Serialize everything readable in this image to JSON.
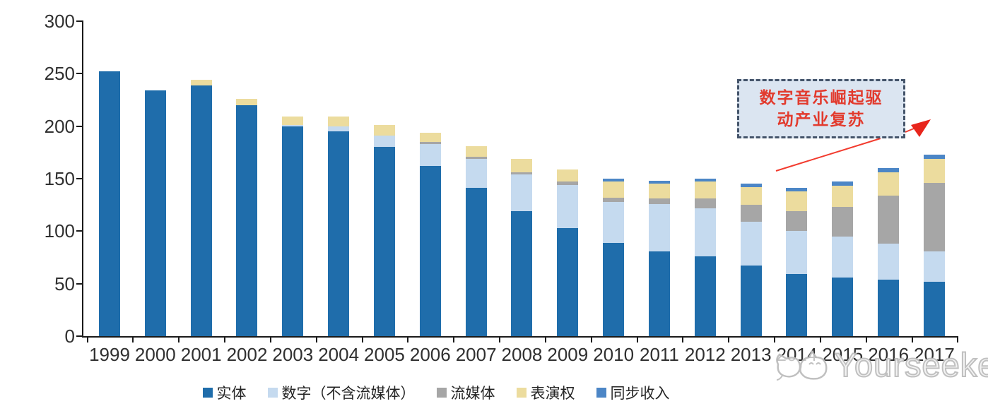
{
  "chart_data": {
    "type": "bar",
    "stacked": true,
    "title": "",
    "xlabel": "",
    "ylabel": "",
    "categories": [
      "1999",
      "2000",
      "2001",
      "2002",
      "2003",
      "2004",
      "2005",
      "2006",
      "2007",
      "2008",
      "2009",
      "2010",
      "2011",
      "2012",
      "2013",
      "2014",
      "2015",
      "2016",
      "2017"
    ],
    "series": [
      {
        "name": "实体",
        "color": "#1F6DAB",
        "values": [
          252,
          234,
          239,
          220,
          200,
          195,
          180,
          162,
          141,
          119,
          103,
          89,
          81,
          76,
          67,
          59,
          56,
          54,
          52
        ]
      },
      {
        "name": "数字（不含流媒体）",
        "color": "#C5DAEF",
        "values": [
          0,
          0,
          0,
          0,
          1,
          5,
          11,
          21,
          28,
          35,
          41,
          39,
          45,
          46,
          42,
          41,
          39,
          34,
          29
        ]
      },
      {
        "name": "流媒体",
        "color": "#A6A6A6",
        "values": [
          0,
          0,
          0,
          0,
          0,
          0,
          0,
          2,
          2,
          2,
          3,
          4,
          5,
          9,
          16,
          19,
          28,
          46,
          65
        ]
      },
      {
        "name": "表演权",
        "color": "#ECDC9E",
        "values": [
          0,
          0,
          5,
          6,
          8,
          9,
          10,
          9,
          10,
          13,
          12,
          15,
          14,
          16,
          17,
          19,
          20,
          22,
          23
        ]
      },
      {
        "name": "同步收入",
        "color": "#4C86C6",
        "values": [
          0,
          0,
          0,
          0,
          0,
          0,
          0,
          0,
          0,
          0,
          0,
          3,
          3,
          3,
          3,
          3,
          4,
          4,
          4
        ]
      }
    ],
    "ylim": [
      0,
      300
    ],
    "yticks": [
      0,
      50,
      100,
      150,
      200,
      250,
      300
    ],
    "grid": false,
    "legend_position": "bottom"
  },
  "annotation": {
    "line1": "数字音乐崛起驱",
    "line2": "动产业复苏",
    "box_fill": "#DBE5F1",
    "border_color": "#44546A",
    "text_color": "#E23B2E",
    "arrow_color": "#F23B2E"
  },
  "watermark": {
    "text": "Yourseeker",
    "logo": "cat-logo",
    "color": "#bdbdbd"
  },
  "axis": {
    "line_color": "#1a1a1a",
    "label_color": "#303030"
  }
}
